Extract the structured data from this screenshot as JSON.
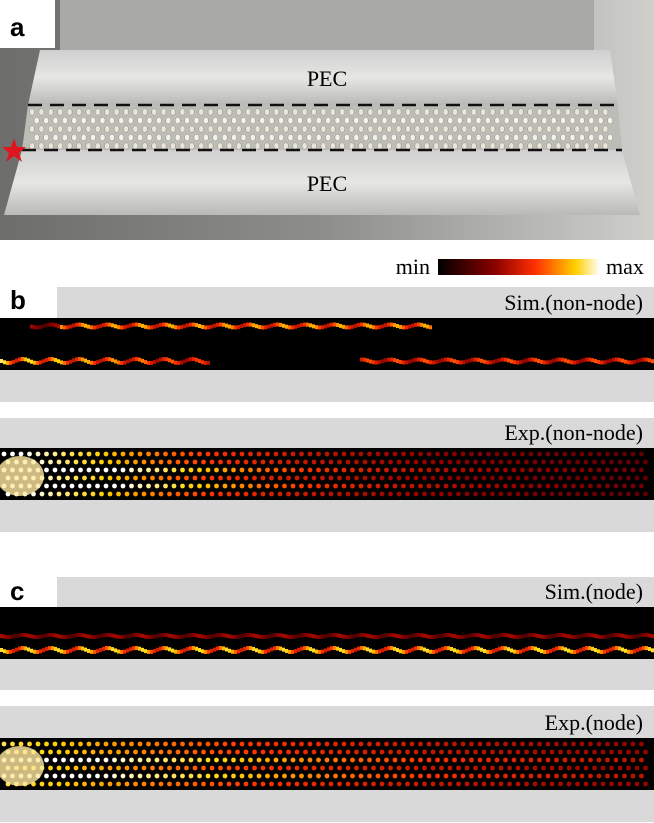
{
  "panel_a": {
    "label": "a",
    "top_plate": "PEC",
    "bottom_plate": "PEC"
  },
  "colorbar": {
    "min": "min",
    "max": "max"
  },
  "panel_b": {
    "label": "b",
    "sim_title": "Sim.(non-node)",
    "exp_title": "Exp.(non-node)"
  },
  "panel_c": {
    "label": "c",
    "sim_title": "Sim.(node)",
    "exp_title": "Exp.(node)"
  }
}
